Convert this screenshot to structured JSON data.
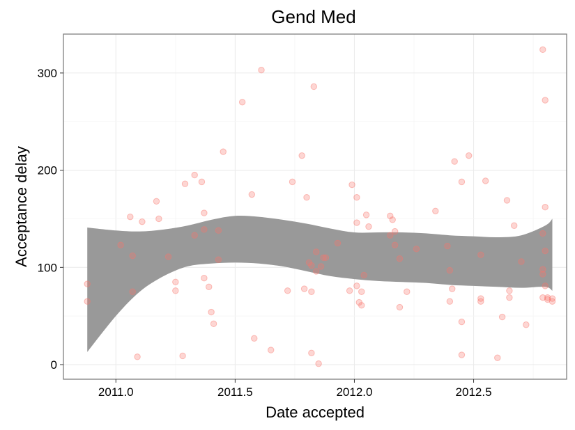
{
  "chart_data": {
    "type": "scatter",
    "title": "Gend Med",
    "xlabel": "Date accepted",
    "ylabel": "Acceptance delay",
    "xlim": [
      2010.78,
      2012.89
    ],
    "ylim": [
      -15,
      340
    ],
    "x_ticks": [
      2011.0,
      2011.5,
      2012.0,
      2012.5
    ],
    "x_tick_labels": [
      "2011.0",
      "2011.5",
      "2012.0",
      "2012.5"
    ],
    "y_ticks": [
      0,
      100,
      200,
      300
    ],
    "y_tick_labels": [
      "0",
      "100",
      "200",
      "300"
    ],
    "grid": true,
    "legend": "none",
    "point_color": "#f8766d",
    "band_color": "#999999",
    "series": [
      {
        "type": "scatter",
        "x": [
          2010.88,
          2010.88,
          2011.02,
          2011.06,
          2011.07,
          2011.07,
          2011.09,
          2011.11,
          2011.17,
          2011.18,
          2011.22,
          2011.25,
          2011.25,
          2011.28,
          2011.29,
          2011.33,
          2011.33,
          2011.36,
          2011.37,
          2011.37,
          2011.37,
          2011.39,
          2011.4,
          2011.41,
          2011.43,
          2011.43,
          2011.45,
          2011.53,
          2011.57,
          2011.58,
          2011.61,
          2011.65,
          2011.72,
          2011.74,
          2011.78,
          2011.79,
          2011.8,
          2011.81,
          2011.82,
          2011.82,
          2011.82,
          2011.83,
          2011.84,
          2011.84,
          2011.85,
          2011.86,
          2011.87,
          2011.88,
          2011.93,
          2011.98,
          2011.99,
          2012.01,
          2012.01,
          2012.01,
          2012.02,
          2012.03,
          2012.03,
          2012.04,
          2012.05,
          2012.06,
          2012.15,
          2012.15,
          2012.16,
          2012.17,
          2012.17,
          2012.19,
          2012.19,
          2012.22,
          2012.26,
          2012.34,
          2012.39,
          2012.4,
          2012.4,
          2012.41,
          2012.42,
          2012.45,
          2012.45,
          2012.45,
          2012.48,
          2012.53,
          2012.53,
          2012.53,
          2012.55,
          2012.6,
          2012.62,
          2012.64,
          2012.65,
          2012.65,
          2012.67,
          2012.7,
          2012.72,
          2012.79,
          2012.79,
          2012.79,
          2012.79,
          2012.79,
          2012.8,
          2012.8,
          2012.8,
          2012.8,
          2012.81,
          2012.81,
          2012.83,
          2012.83
        ],
        "y": [
          83,
          65,
          123,
          152,
          75,
          112,
          8,
          147,
          168,
          150,
          111,
          85,
          76,
          9,
          186,
          195,
          133,
          188,
          156,
          139,
          89,
          80,
          54,
          42,
          138,
          108,
          219,
          270,
          175,
          27,
          303,
          15,
          76,
          188,
          215,
          78,
          172,
          105,
          102,
          75,
          12,
          286,
          116,
          96,
          1,
          101,
          110,
          110,
          125,
          76,
          185,
          81,
          172,
          146,
          64,
          61,
          75,
          92,
          154,
          142,
          153,
          133,
          149,
          123,
          137,
          109,
          59,
          75,
          119,
          158,
          122,
          97,
          65,
          78,
          209,
          188,
          44,
          10,
          215,
          113,
          65,
          68,
          189,
          7,
          49,
          169,
          69,
          76,
          143,
          106,
          41,
          69,
          135,
          98,
          93,
          324,
          117,
          272,
          162,
          81,
          69,
          67,
          68,
          65
        ]
      },
      {
        "type": "area",
        "name": "",
        "x": [
          2010.88,
          2011.0,
          2011.1,
          2011.2,
          2011.3,
          2011.4,
          2011.5,
          2011.6,
          2011.7,
          2011.8,
          2011.9,
          2012.0,
          2012.1,
          2012.2,
          2012.3,
          2012.4,
          2012.5,
          2012.6,
          2012.7,
          2012.8,
          2012.83
        ],
        "upper": [
          141,
          138,
          137,
          139,
          143,
          149,
          153,
          152,
          149,
          145,
          140,
          136,
          136,
          136,
          135,
          133,
          132,
          131,
          133,
          143,
          150
        ],
        "lower": [
          13,
          50,
          75,
          91,
          101,
          104,
          105,
          104,
          101,
          96,
          91,
          88,
          86,
          85,
          84,
          82,
          81,
          80,
          79,
          80,
          76
        ]
      }
    ]
  }
}
